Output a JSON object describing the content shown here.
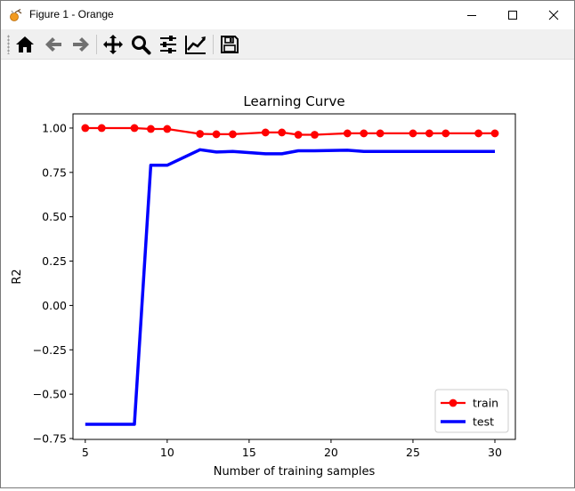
{
  "window": {
    "title": "Figure 1 - Orange"
  },
  "toolbar": {
    "buttons": [
      {
        "icon": "home-icon"
      },
      {
        "icon": "back-arrow-icon"
      },
      {
        "icon": "forward-arrow-icon"
      },
      {
        "icon": "pan-icon"
      },
      {
        "icon": "zoom-icon"
      },
      {
        "icon": "subplots-config-icon"
      },
      {
        "icon": "edit-curves-icon"
      },
      {
        "icon": "save-icon"
      }
    ]
  },
  "chart_data": {
    "type": "line",
    "title": "Learning Curve",
    "xlabel": "Number of training samples",
    "ylabel": "R2",
    "xlim": [
      4.25,
      31.25
    ],
    "ylim": [
      -0.755,
      1.08
    ],
    "xticks": [
      5,
      10,
      15,
      20,
      25,
      30
    ],
    "xtick_labels": [
      "5",
      "10",
      "15",
      "20",
      "25",
      "30"
    ],
    "yticks": [
      -0.75,
      -0.5,
      -0.25,
      0.0,
      0.25,
      0.5,
      0.75,
      1.0
    ],
    "ytick_labels": [
      "−0.75",
      "−0.50",
      "−0.25",
      "0.00",
      "0.25",
      "0.50",
      "0.75",
      "1.00"
    ],
    "grid": false,
    "legend_position": "lower right",
    "series": [
      {
        "name": "train",
        "color": "#ff0000",
        "marker": "circle",
        "x": [
          5,
          6,
          8,
          9,
          10,
          12,
          13,
          14,
          16,
          17,
          18,
          19,
          21,
          22,
          23,
          25,
          26,
          27,
          29,
          30
        ],
        "y": [
          1.0,
          1.0,
          1.0,
          0.995,
          0.995,
          0.967,
          0.965,
          0.965,
          0.975,
          0.975,
          0.962,
          0.962,
          0.97,
          0.97,
          0.97,
          0.97,
          0.97,
          0.97,
          0.97,
          0.97
        ]
      },
      {
        "name": "test",
        "color": "#0000ff",
        "marker": "none",
        "x": [
          5,
          6,
          8,
          9,
          10,
          12,
          13,
          14,
          16,
          17,
          18,
          19,
          21,
          22,
          23,
          25,
          26,
          27,
          29,
          30
        ],
        "y": [
          -0.67,
          -0.67,
          -0.67,
          0.79,
          0.79,
          0.878,
          0.865,
          0.868,
          0.855,
          0.855,
          0.872,
          0.872,
          0.875,
          0.868,
          0.868,
          0.868,
          0.868,
          0.868,
          0.868,
          0.868
        ]
      }
    ]
  }
}
